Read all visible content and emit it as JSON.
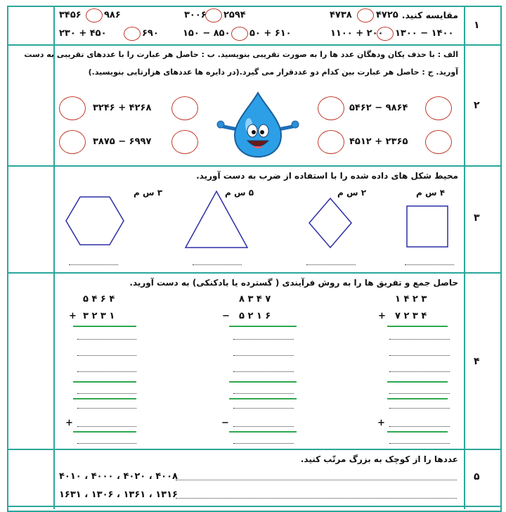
{
  "rows": {
    "r1": {
      "number": "۱",
      "instruction": "مقایسه کنید.",
      "items": [
        {
          "left": "۴۷۲۵",
          "right": "۴۷۳۸"
        },
        {
          "left": "۲۵۹۴",
          "right": "۳۰۰۶"
        },
        {
          "left": "۹۸۶",
          "right": "۳۴۵۶"
        },
        {
          "left": "۱۳۰۰ − ۱۴۰۰",
          "right": "۱۱۰۰ + ۲۰۰"
        },
        {
          "left": "۵۰ + ۶۱۰",
          "right": "۱۵۰ − ۸۵۰"
        },
        {
          "left": "۶۹۰",
          "right": "۲۳۰ + ۴۵۰"
        }
      ]
    },
    "r2": {
      "number": "۲",
      "instruction_line1": "الف : با حذف یکان ودهگان عدد ها را به صورت تقریبی بنویسید. ب : حاصل هر عبارت را با عددهای تقریبی به دست",
      "instruction_line2": "آورید. ج : حاصل هر عبارت بین کدام دو عددقرار می گیرد.(در دایره ها عددهای هزارتایی بنویسید.)",
      "exprs": {
        "a": "۵۴۶۲ − ۹۸۶۴",
        "b": "۴۵۱۲ + ۲۳۶۵",
        "c": "۳۲۴۶ + ۴۲۶۸",
        "d": "۳۸۷۵ − ۶۹۹۷"
      }
    },
    "r3": {
      "number": "۳",
      "instruction": "محیط شکل های داده شده را با استفاده از ضرب به دست آورید.",
      "shapes": [
        {
          "name": "square",
          "label": "۴ س م"
        },
        {
          "name": "rhombus",
          "label": "۲ س م"
        },
        {
          "name": "triangle",
          "label": "۵ س م"
        },
        {
          "name": "hexagon",
          "label": "۳ س م"
        }
      ]
    },
    "r4": {
      "number": "۴",
      "instruction": "حاصل جمع و تفریق ها را به روش فرآیندی ( گسترده یا بادکنکی) به دست آورید.",
      "problems": [
        {
          "top": "۱   ۴   ۲   ۳",
          "bottom": "۷   ۲   ۳   ۴",
          "op": "+"
        },
        {
          "top": "۸   ۳   ۴   ۷",
          "bottom": "۵   ۲   ۱   ۶",
          "op": "−"
        },
        {
          "top": "۵   ۴   ۶   ۴",
          "bottom": "۳   ۲   ۳   ۱",
          "op": "+"
        }
      ]
    },
    "r5": {
      "number": "۵",
      "instruction": "عددها را از کوچک به بزرگ مرتّب کنید.",
      "set1": "۴۰۰۸ ، ۴۰۲۰ ، ۴۰۰۰ ، ۴۰۱۰",
      "set2": "۱۳۱۶ ، ۱۳۶۱ ، ۱۳۰۶ ، ۱۶۳۱"
    }
  }
}
